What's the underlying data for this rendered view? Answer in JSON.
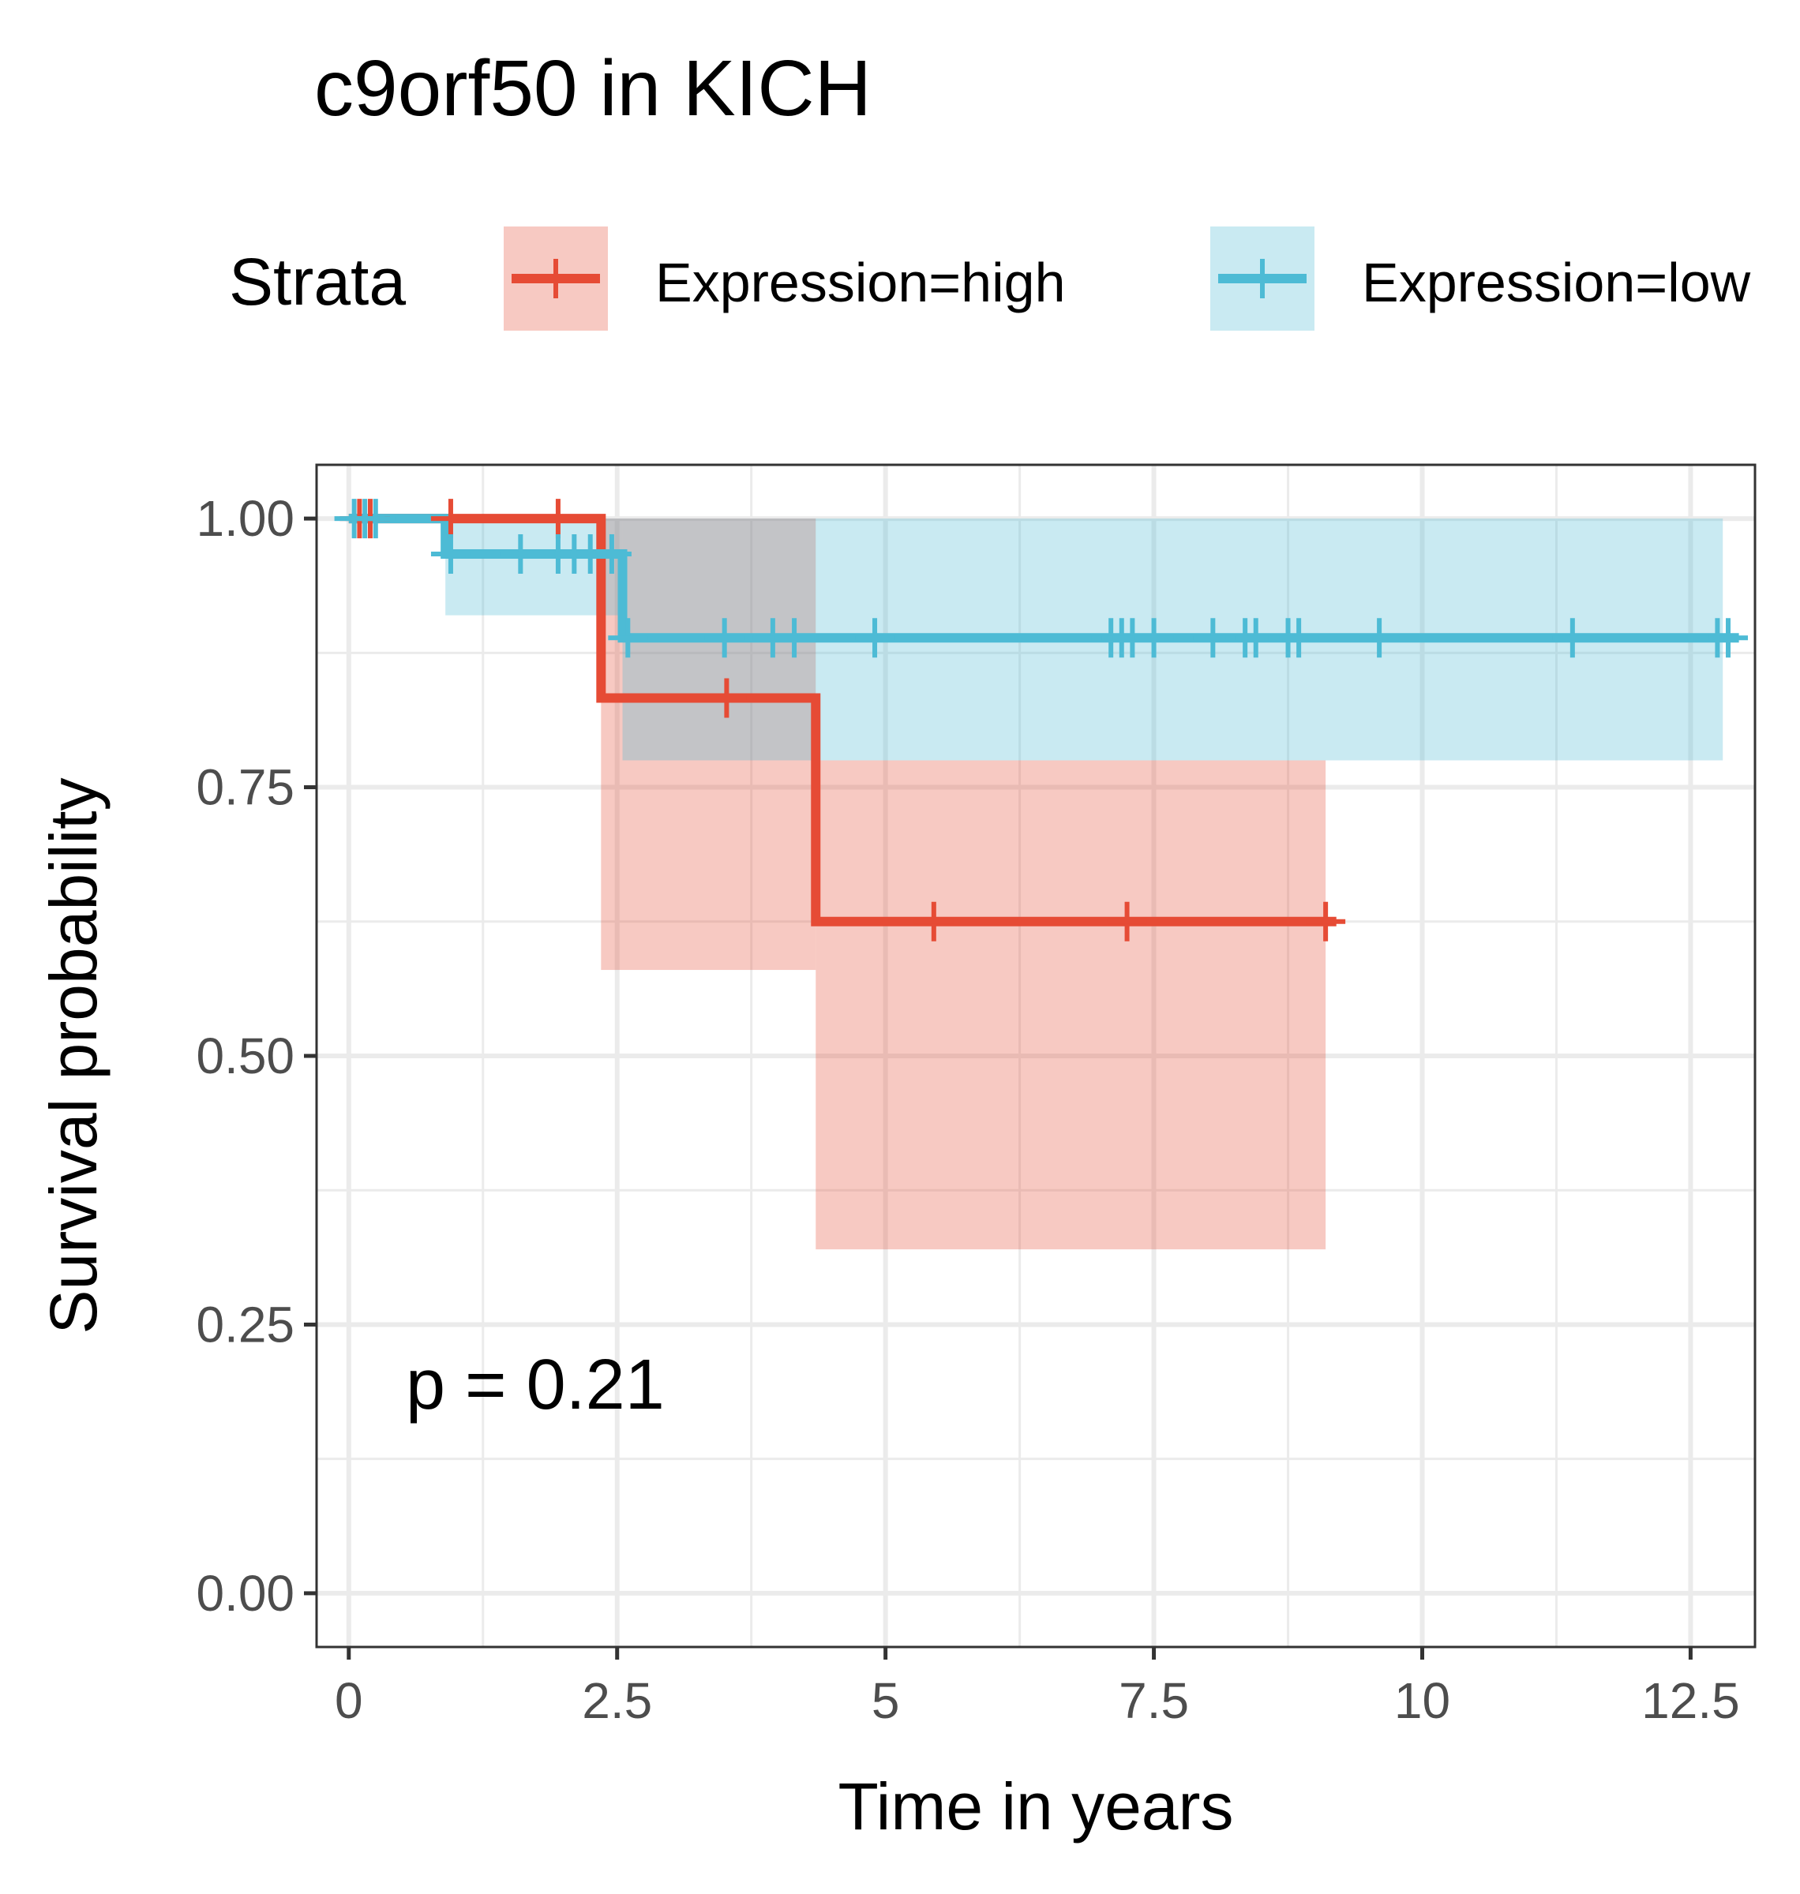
{
  "chart_data": {
    "type": "line",
    "title": "c9orf50 in KICH",
    "xlabel": "Time in years",
    "ylabel": "Survival probability",
    "xlim": [
      -0.3,
      13.1
    ],
    "ylim": [
      -0.05,
      1.05
    ],
    "x_ticks": [
      0,
      2.5,
      5,
      7.5,
      10,
      12.5
    ],
    "x_tick_labels": [
      "0",
      "2.5",
      "5",
      "7.5",
      "10",
      "12.5"
    ],
    "y_ticks": [
      0,
      0.25,
      0.5,
      0.75,
      1.0
    ],
    "y_tick_labels": [
      "0.00",
      "0.25",
      "0.50",
      "0.75",
      "1.00"
    ],
    "grid": true,
    "legend_title": "Strata",
    "legend_position": "top",
    "annotation": "p = 0.21",
    "series": [
      {
        "name": "Expression=high",
        "color": "#E64B35",
        "steps": [
          [
            0,
            1.0
          ],
          [
            2.35,
            0.833
          ],
          [
            4.35,
            0.625
          ],
          [
            9.1,
            0.625
          ]
        ],
        "ci": [
          [
            2.35,
            0.58,
            1.0
          ],
          [
            4.35,
            0.32,
            0.775
          ],
          [
            9.1,
            0.32,
            0.775
          ]
        ],
        "censor_x": [
          0.1,
          0.2,
          0.95,
          1.95,
          3.52,
          5.45,
          7.25,
          9.1
        ],
        "end_x": 9.2
      },
      {
        "name": "Expression=low",
        "color": "#4DBBD5",
        "steps": [
          [
            0,
            1.0
          ],
          [
            0.9,
            0.967
          ],
          [
            2.55,
            0.889
          ],
          [
            12.8,
            0.889
          ]
        ],
        "ci": [
          [
            0.9,
            0.91,
            1.0
          ],
          [
            2.55,
            0.775,
            1.0
          ],
          [
            12.8,
            0.775,
            1.0
          ]
        ],
        "censor_x": [
          0.05,
          0.15,
          0.25,
          0.95,
          1.6,
          1.95,
          2.1,
          2.25,
          2.45,
          2.6,
          3.5,
          3.95,
          4.15,
          4.9,
          7.1,
          7.2,
          7.3,
          7.5,
          8.05,
          8.35,
          8.45,
          8.75,
          8.85,
          9.6,
          11.4,
          12.75,
          12.85
        ],
        "end_x": 12.95
      }
    ]
  }
}
